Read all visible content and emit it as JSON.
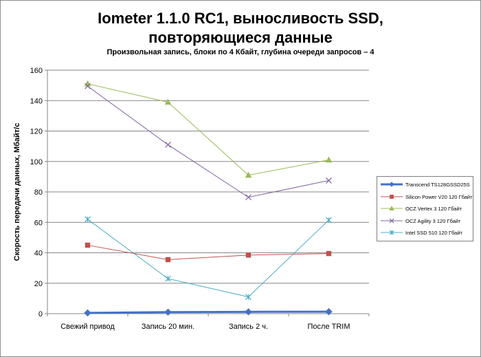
{
  "chart_data": {
    "type": "line",
    "title_line1": "Iometer 1.1.0 RC1, выносливость SSD,",
    "title_line2": "повторяющиеся данные",
    "subtitle": "Произвольная  запись, блоки по 4 Кбайт, глубина очереди запросов – 4",
    "ylabel": "Скорость передачи данных, Мбайт/с",
    "xlabel": "",
    "ylim": [
      0,
      160
    ],
    "yticks": [
      0,
      20,
      40,
      60,
      80,
      100,
      120,
      140,
      160
    ],
    "grid": true,
    "legend_position": "right",
    "categories": [
      "Свежий  привод",
      "Запись 20 мин.",
      "Запись 2 ч.",
      "После TRIM"
    ],
    "series": [
      {
        "name": "Transcend TS128GSSD25S",
        "values": [
          0.5,
          1,
          1.2,
          1.3
        ],
        "color": "#4472c4",
        "marker": "diamond",
        "width": 3
      },
      {
        "name": "Silicon Power V20 120 Гбайт",
        "values": [
          45,
          35.5,
          38.5,
          39.5
        ],
        "color": "#c0504d",
        "marker": "square",
        "width": 1
      },
      {
        "name": "OCZ Vertex 3 120 Гбайт",
        "values": [
          151,
          139,
          91,
          101
        ],
        "color": "#9bbb59",
        "marker": "triangle",
        "width": 1
      },
      {
        "name": "OCZ Agility 3 120 Гбайт",
        "values": [
          149.5,
          111,
          76.5,
          87.5
        ],
        "color": "#8064a2",
        "marker": "x",
        "width": 1
      },
      {
        "name": "Intel SSD 510 120 Гбайт",
        "values": [
          62,
          23,
          11,
          61.5
        ],
        "color": "#4bacc6",
        "marker": "star",
        "width": 1
      }
    ]
  }
}
